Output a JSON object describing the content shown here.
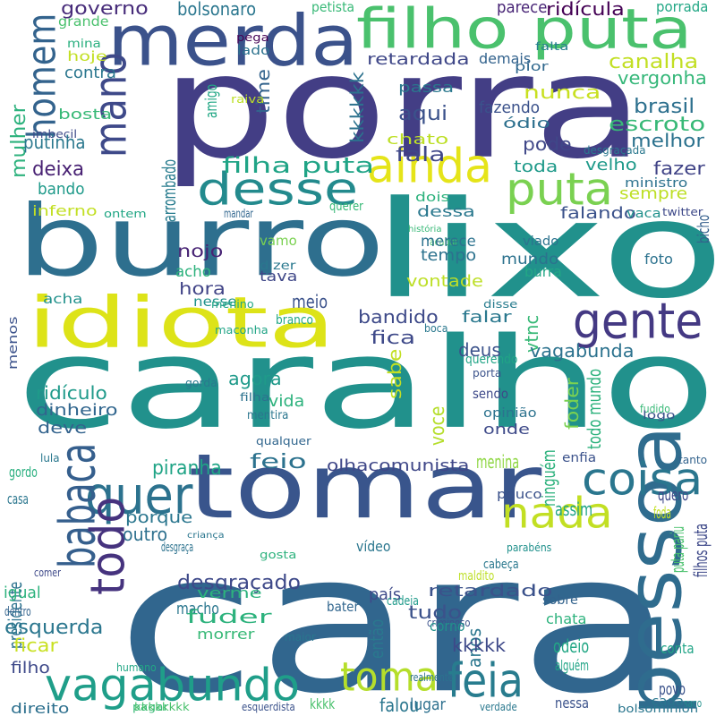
{
  "words": [
    {
      "text": "cara",
      "color": "#31668e"
    },
    {
      "text": "caralho",
      "color": "#21918c"
    },
    {
      "text": "porra",
      "color": "#433e85"
    },
    {
      "text": "burro",
      "color": "#2e6f8e"
    },
    {
      "text": "lixo",
      "color": "#21918c"
    },
    {
      "text": "tomar",
      "color": "#39558c"
    },
    {
      "text": "idiota",
      "color": "#dde318"
    },
    {
      "text": "merda",
      "color": "#3b528b"
    },
    {
      "text": "filho puta",
      "color": "#4ac16d"
    },
    {
      "text": "mano",
      "color": "#3e4989"
    },
    {
      "text": "desse",
      "color": "#238a8d"
    },
    {
      "text": "ainda",
      "color": "#e5e419"
    },
    {
      "text": "puta",
      "color": "#7ad151"
    },
    {
      "text": "gente",
      "color": "#443983"
    },
    {
      "text": "quer",
      "color": "#2c728e"
    },
    {
      "text": "vagabundo",
      "color": "#1f9e89"
    },
    {
      "text": "nada",
      "color": "#c2df23"
    },
    {
      "text": "toma",
      "color": "#b5de2b"
    },
    {
      "text": "feia",
      "color": "#287c8e"
    },
    {
      "text": "pessoa",
      "color": "#2f6c8e"
    },
    {
      "text": "coisa",
      "color": "#2a768e"
    },
    {
      "text": "babaca",
      "color": "#355f8d"
    },
    {
      "text": "todo",
      "color": "#46337e"
    },
    {
      "text": "homem",
      "color": "#33638d"
    },
    {
      "text": "governo",
      "color": "#472c7a"
    },
    {
      "text": "grande",
      "color": "#4ac16d"
    },
    {
      "text": "mina",
      "color": "#29af7f"
    },
    {
      "text": "hoje",
      "color": "#c2df23"
    },
    {
      "text": "contra",
      "color": "#2a768e"
    },
    {
      "text": "bolsonaro",
      "color": "#2a768e"
    },
    {
      "text": "petista",
      "color": "#38b977"
    },
    {
      "text": "parece",
      "color": "#482576"
    },
    {
      "text": "ridícula",
      "color": "#440154"
    },
    {
      "text": "porrada",
      "color": "#22a785"
    },
    {
      "text": "pega",
      "color": "#440154"
    },
    {
      "text": "lado",
      "color": "#2c728e"
    },
    {
      "text": "falta",
      "color": "#277f8e"
    },
    {
      "text": "pior",
      "color": "#30688e"
    },
    {
      "text": "retardada",
      "color": "#3f4788"
    },
    {
      "text": "demais",
      "color": "#33638d"
    },
    {
      "text": "canalha",
      "color": "#c2df23"
    },
    {
      "text": "vergonha",
      "color": "#35b779"
    },
    {
      "text": "nunca",
      "color": "#c8e020"
    },
    {
      "text": "brasil",
      "color": "#2d708e"
    },
    {
      "text": "escroto",
      "color": "#38b977"
    },
    {
      "text": "melhor",
      "color": "#2c728e"
    },
    {
      "text": "fazer",
      "color": "#414487"
    },
    {
      "text": "sempre",
      "color": "#bddf26"
    },
    {
      "text": "ministro",
      "color": "#2c728e"
    },
    {
      "text": "twitter",
      "color": "#3e4989"
    },
    {
      "text": "bicho",
      "color": "#355f8d"
    },
    {
      "text": "passa",
      "color": "#2a788e"
    },
    {
      "text": "aqui",
      "color": "#3b528b"
    },
    {
      "text": "fazendo",
      "color": "#3b528b"
    },
    {
      "text": "ódio",
      "color": "#2d708e"
    },
    {
      "text": "pode",
      "color": "#3f4788"
    },
    {
      "text": "toda",
      "color": "#1f9a8a"
    },
    {
      "text": "velho",
      "color": "#1f9a8a"
    },
    {
      "text": "chato",
      "color": "#bddf26"
    },
    {
      "text": "fala",
      "color": "#3f4788"
    },
    {
      "text": "kkkkkk",
      "color": "#2c728e"
    },
    {
      "text": "time",
      "color": "#33638d"
    },
    {
      "text": "amigo",
      "color": "#22a785"
    },
    {
      "text": "raiva",
      "color": "#bddf26"
    },
    {
      "text": "bosta",
      "color": "#38b977"
    },
    {
      "text": "mulher",
      "color": "#2db27d"
    },
    {
      "text": "imbecil",
      "color": "#3e4a89"
    },
    {
      "text": "putinha",
      "color": "#2a788e"
    },
    {
      "text": "deixa",
      "color": "#482173"
    },
    {
      "text": "bando",
      "color": "#1f9a8a"
    },
    {
      "text": "inferno",
      "color": "#c2df23"
    },
    {
      "text": "ontem",
      "color": "#22a785"
    },
    {
      "text": "filha puta",
      "color": "#20a486"
    },
    {
      "text": "arrombado",
      "color": "#287c8e"
    },
    {
      "text": "dessa",
      "color": "#2a788e"
    },
    {
      "text": "tempo",
      "color": "#2c728e"
    },
    {
      "text": "falando",
      "color": "#3b528b"
    },
    {
      "text": "vaca",
      "color": "#21918c"
    },
    {
      "text": "dois",
      "color": "#2db27d"
    },
    {
      "text": "história",
      "color": "#38b977"
    },
    {
      "text": "acabar",
      "color": "#4ac16d"
    },
    {
      "text": "desgraçada",
      "color": "#2a788e"
    },
    {
      "text": "nojo",
      "color": "#482475"
    },
    {
      "text": "acho",
      "color": "#2db27d"
    },
    {
      "text": "hora",
      "color": "#414487"
    },
    {
      "text": "vamo",
      "color": "#7ad151"
    },
    {
      "text": "tava",
      "color": "#3f4788"
    },
    {
      "text": "dizer",
      "color": "#2a788e"
    },
    {
      "text": "mandar",
      "color": "#31668e"
    },
    {
      "text": "querer",
      "color": "#38b977"
    },
    {
      "text": "merece",
      "color": "#2c728e"
    },
    {
      "text": "mundo",
      "color": "#2c728e"
    },
    {
      "text": "viado",
      "color": "#2c728e"
    },
    {
      "text": "burra",
      "color": "#22a785"
    },
    {
      "text": "vontade",
      "color": "#bddf26"
    },
    {
      "text": "foto",
      "color": "#2c728e"
    },
    {
      "text": "meio",
      "color": "#3b528b"
    },
    {
      "text": "acha",
      "color": "#21918c"
    },
    {
      "text": "nesse",
      "color": "#21918c"
    },
    {
      "text": "menino",
      "color": "#22a785"
    },
    {
      "text": "bandido",
      "color": "#3e4a89"
    },
    {
      "text": "falar",
      "color": "#2a788e"
    },
    {
      "text": "disse",
      "color": "#287c8e"
    },
    {
      "text": "fica",
      "color": "#3e4989"
    },
    {
      "text": "vtnc",
      "color": "#38b977"
    },
    {
      "text": "vagabunda",
      "color": "#2c728e"
    },
    {
      "text": "deus",
      "color": "#3b528b"
    },
    {
      "text": "sabe",
      "color": "#c2df23"
    },
    {
      "text": "menos",
      "color": "#3b528b"
    },
    {
      "text": "maconha",
      "color": "#20a486"
    },
    {
      "text": "boca",
      "color": "#2a788e"
    },
    {
      "text": "querendo",
      "color": "#20a486"
    },
    {
      "text": "branco",
      "color": "#22a785"
    },
    {
      "text": "agora",
      "color": "#1f9a8a"
    },
    {
      "text": "ridículo",
      "color": "#1f9a8a"
    },
    {
      "text": "vida",
      "color": "#2db27d"
    },
    {
      "text": "gorda",
      "color": "#2a788e"
    },
    {
      "text": "filha",
      "color": "#2c728e"
    },
    {
      "text": "mentira",
      "color": "#2a768e"
    },
    {
      "text": "qualquer",
      "color": "#31668e"
    },
    {
      "text": "dinheiro",
      "color": "#31668e"
    },
    {
      "text": "deve",
      "color": "#33638d"
    },
    {
      "text": "porta",
      "color": "#3b528b"
    },
    {
      "text": "opinião",
      "color": "#2c728e"
    },
    {
      "text": "sendo",
      "color": "#3e4989"
    },
    {
      "text": "voce",
      "color": "#b5de2b"
    },
    {
      "text": "onde",
      "color": "#3e4a89"
    },
    {
      "text": "foder",
      "color": "#7ad151"
    },
    {
      "text": "todo mundo",
      "color": "#2db27d"
    },
    {
      "text": "fudido",
      "color": "#38b977"
    },
    {
      "text": "logo",
      "color": "#3b528b"
    },
    {
      "text": "lula",
      "color": "#2a788e"
    },
    {
      "text": "feio",
      "color": "#2c728e"
    },
    {
      "text": "olhacomunista",
      "color": "#3f4788"
    },
    {
      "text": "menina",
      "color": "#8fd744"
    },
    {
      "text": "ninguém",
      "color": "#2db27d"
    },
    {
      "text": "enfia",
      "color": "#3b528b"
    },
    {
      "text": "tanto",
      "color": "#33638d"
    },
    {
      "text": "piranha",
      "color": "#20a486"
    },
    {
      "text": "gordo",
      "color": "#29af7f"
    },
    {
      "text": "casa",
      "color": "#2a768e"
    },
    {
      "text": "porque",
      "color": "#2a768e"
    },
    {
      "text": "outro",
      "color": "#2d708e"
    },
    {
      "text": "quero",
      "color": "#3e4989"
    },
    {
      "text": "pouco",
      "color": "#3b528b"
    },
    {
      "text": "assim",
      "color": "#20a486"
    },
    {
      "text": "foda",
      "color": "#c2df23"
    },
    {
      "text": "puta pariu",
      "color": "#4ac16d"
    },
    {
      "text": "filhos puta",
      "color": "#3e4989"
    },
    {
      "text": "presidente",
      "color": "#2c728e"
    },
    {
      "text": "desgraça",
      "color": "#2c728e"
    },
    {
      "text": "criança",
      "color": "#2a768e"
    },
    {
      "text": "comer",
      "color": "#3e4989"
    },
    {
      "text": "gosta",
      "color": "#2db27d"
    },
    {
      "text": "vídeo",
      "color": "#2a768e"
    },
    {
      "text": "parabéns",
      "color": "#21918c"
    },
    {
      "text": "desgraçado",
      "color": "#3e4989"
    },
    {
      "text": "macho",
      "color": "#2a768e"
    },
    {
      "text": "cabeça",
      "color": "#2a788e"
    },
    {
      "text": "verme",
      "color": "#2db27d"
    },
    {
      "text": "país",
      "color": "#3e4989"
    },
    {
      "text": "maldito",
      "color": "#bddf26"
    },
    {
      "text": "cadeia",
      "color": "#1f9a8a"
    },
    {
      "text": "sobre",
      "color": "#33638d"
    },
    {
      "text": "retardado",
      "color": "#3b528b"
    },
    {
      "text": "chata",
      "color": "#2db27d"
    },
    {
      "text": "igual",
      "color": "#2db27d"
    },
    {
      "text": "dentro",
      "color": "#33638d"
    },
    {
      "text": "esquerda",
      "color": "#2a768e"
    },
    {
      "text": "fuder",
      "color": "#2db27d"
    },
    {
      "text": "bater",
      "color": "#31668e"
    },
    {
      "text": "tudo",
      "color": "#3b528b"
    },
    {
      "text": "ficar",
      "color": "#c8e020"
    },
    {
      "text": "morrer",
      "color": "#38b977"
    },
    {
      "text": "maior",
      "color": "#2a768e"
    },
    {
      "text": "então",
      "color": "#2a788e"
    },
    {
      "text": "criminoso",
      "color": "#3b528b"
    },
    {
      "text": "corno",
      "color": "#21918c"
    },
    {
      "text": "anos",
      "color": "#2a768e"
    },
    {
      "text": "kkkkk",
      "color": "#3e4989"
    },
    {
      "text": "odeio",
      "color": "#22a785"
    },
    {
      "text": "conta",
      "color": "#20a486"
    },
    {
      "text": "filho",
      "color": "#3e4989"
    },
    {
      "text": "humano",
      "color": "#22a785"
    },
    {
      "text": "povo",
      "color": "#3b528b"
    },
    {
      "text": "alguém",
      "color": "#20a486"
    },
    {
      "text": "realmente",
      "color": "#2c728e"
    },
    {
      "text": "saco",
      "color": "#21918c"
    },
    {
      "text": "cada",
      "color": "#2a768e"
    },
    {
      "text": "pagar",
      "color": "#38b977"
    },
    {
      "text": "nessa",
      "color": "#3b528b"
    },
    {
      "text": "falou",
      "color": "#2a768e"
    },
    {
      "text": "direito",
      "color": "#2d708e"
    },
    {
      "text": "kkkkkkkk",
      "color": "#4ac16d"
    },
    {
      "text": "esquerdista",
      "color": "#3b528b"
    },
    {
      "text": "kkkk",
      "color": "#4ac16d"
    },
    {
      "text": "lugar",
      "color": "#2d708e"
    },
    {
      "text": "verdade",
      "color": "#2a788e"
    },
    {
      "text": "bolsominion",
      "color": "#2a768e"
    }
  ]
}
